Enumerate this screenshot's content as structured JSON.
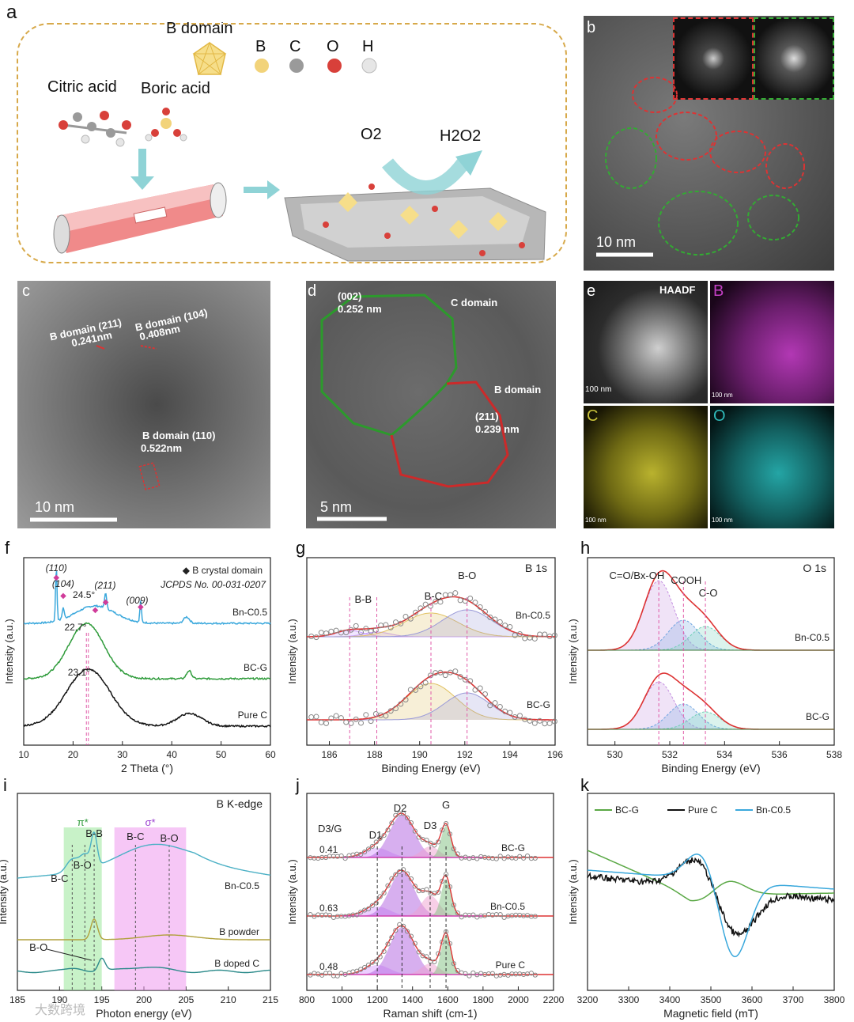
{
  "panel_a": {
    "letter": "a",
    "b_domain": "B domain",
    "atoms": [
      "B",
      "C",
      "O",
      "H"
    ],
    "citric": "Citric acid",
    "boric": "Boric acid",
    "o2": "O2",
    "h2o2": "H2O2",
    "colors": {
      "B": "#f2d37a",
      "C": "#9a9a9a",
      "O": "#d8403a",
      "H": "#e6e6e6",
      "border": "#d7a94a",
      "arrow": "#6cc7c9"
    }
  },
  "panel_b": {
    "letter": "b",
    "scale": "10 nm"
  },
  "panel_c": {
    "letter": "c",
    "scale": "10 nm",
    "labels": [
      "B domain (211)",
      "0.241nm",
      "B domain (104)",
      "0.408nm",
      "B domain (110)",
      "0.522nm"
    ]
  },
  "panel_d": {
    "letter": "d",
    "scale": "5 nm",
    "labels": [
      "(002)",
      "0.252 nm",
      "C domain",
      "B domain",
      "(211)",
      "0.239 nm"
    ]
  },
  "panel_e": {
    "letter": "e",
    "maps": [
      {
        "label": "HAADF",
        "scale": "100 nm",
        "color": "#ffffff"
      },
      {
        "label": "B",
        "scale": "100 nm",
        "color": "#c23fc3"
      },
      {
        "label": "C",
        "scale": "100 nm",
        "color": "#c9c23a"
      },
      {
        "label": "O",
        "scale": "100 nm",
        "color": "#2fb9b9"
      }
    ]
  },
  "chart_data": [
    {
      "panel": "f",
      "type": "line",
      "xlabel": "2 Theta (°)",
      "ylabel": "Intensity (a.u.)",
      "xlim": [
        10,
        60
      ],
      "xticks": [
        10,
        20,
        30,
        40,
        50,
        60
      ],
      "legend": "◆ B crystal domain",
      "note": "JCPDS No. 00-031-0207",
      "series": [
        {
          "name": "Bn-C0.5",
          "color": "#3aa8dc",
          "peaks_x": [
            16.6,
            18.0,
            24.5,
            26.6,
            33.7,
            43.0
          ]
        },
        {
          "name": "BC-G",
          "color": "#2e9b3a",
          "peak_x": 22.7
        },
        {
          "name": "Pure C",
          "color": "#111111",
          "peak_x": 23.1
        }
      ],
      "annotations": [
        "(110)",
        "(104)",
        "24.5°",
        "(211)",
        "(009)",
        "22.7°",
        "23.1°"
      ]
    },
    {
      "panel": "g",
      "type": "line",
      "title": "B 1s",
      "xlabel": "Binding Energy (eV)",
      "ylabel": "Intensity (a.u.)",
      "xlim": [
        185,
        196
      ],
      "xticks": [
        186,
        188,
        190,
        192,
        194,
        196
      ],
      "series": [
        "Bn-C0.5",
        "BC-G"
      ],
      "components": [
        "B-B",
        "B-C",
        "B-O"
      ],
      "reference_lines": [
        186.9,
        188.1,
        190.5,
        192.1
      ]
    },
    {
      "panel": "h",
      "type": "line",
      "title": "O 1s",
      "xlabel": "Binding Energy (eV)",
      "ylabel": "Intensity (a.u.)",
      "xlim": [
        529,
        538
      ],
      "xticks": [
        530,
        532,
        534,
        536,
        538
      ],
      "series": [
        "Bn-C0.5",
        "BC-G"
      ],
      "components": [
        "C=O/Bx-OH",
        "COOH",
        "C-O"
      ],
      "reference_lines": [
        531.6,
        532.5,
        533.3
      ]
    },
    {
      "panel": "i",
      "type": "line",
      "title": "B K-edge",
      "xlabel": "Photon energy (eV)",
      "ylabel": "Intensity (a.u.)",
      "xlim": [
        185,
        215
      ],
      "xticks": [
        185,
        190,
        195,
        200,
        205,
        210,
        215
      ],
      "bands": [
        {
          "label": "π*",
          "from": 190.5,
          "to": 195,
          "color": "#9be89b"
        },
        {
          "label": "σ*",
          "from": 196.5,
          "to": 205,
          "color": "#ee99ee"
        }
      ],
      "series": [
        {
          "name": "Bn-C0.5",
          "color": "#4bb0c5"
        },
        {
          "name": "B powder",
          "color": "#b0a13b"
        },
        {
          "name": "B doped C",
          "color": "#2b8a8a"
        }
      ],
      "peak_labels": [
        "B-C",
        "B-O",
        "B-B",
        "B-C",
        "B-O",
        "B-O"
      ]
    },
    {
      "panel": "j",
      "type": "line",
      "xlabel": "Raman shift (cm-1)",
      "ylabel": "Intensity (a.u.)",
      "xlim": [
        800,
        2200
      ],
      "xticks": [
        800,
        1000,
        1200,
        1400,
        1600,
        1800,
        2000,
        2200
      ],
      "bands": [
        "D1",
        "D2",
        "D3",
        "G"
      ],
      "ratio_label": "D3/G",
      "series": [
        {
          "name": "BC-G",
          "d3_over_g": 0.41
        },
        {
          "name": "Bn-C0.5",
          "d3_over_g": 0.63
        },
        {
          "name": "Pure C",
          "d3_over_g": 0.48
        }
      ]
    },
    {
      "panel": "k",
      "type": "line",
      "xlabel": "Magnetic field (mT)",
      "ylabel": "Intensity (a.u.)",
      "xlim": [
        3200,
        3800
      ],
      "xticks": [
        3200,
        3300,
        3400,
        3500,
        3600,
        3700,
        3800
      ],
      "legend": [
        "BC-G",
        "Pure C",
        "Bn-C0.5"
      ],
      "series": [
        {
          "name": "BC-G",
          "color": "#5aa845"
        },
        {
          "name": "Pure C",
          "color": "#111111"
        },
        {
          "name": "Bn-C0.5",
          "color": "#3aa8dc"
        }
      ]
    }
  ],
  "watermark": "大数跨境"
}
